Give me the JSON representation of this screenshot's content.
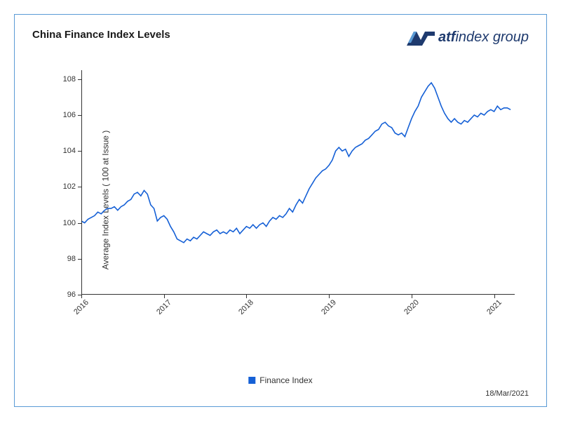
{
  "title": "China Finance Index Levels",
  "logo": {
    "brand": "atf",
    "suffix": "index group"
  },
  "legend": {
    "label": "Finance Index"
  },
  "date_stamp": "18/Mar/2021",
  "chart": {
    "type": "line",
    "y_axis_label": "Average Index Levels ( 100 at Issue )",
    "ylim": [
      96,
      108.5
    ],
    "yticks": [
      96,
      98,
      100,
      102,
      104,
      106,
      108
    ],
    "xlim": [
      2016,
      2021.25
    ],
    "xticks": [
      2016,
      2017,
      2018,
      2019,
      2020,
      2021
    ],
    "xtick_labels": [
      "2016",
      "2017",
      "2018",
      "2019",
      "2020",
      "2021"
    ],
    "line_color": "#1560d6",
    "line_width": 1.6,
    "background_color": "#ffffff",
    "axis_color": "#333333",
    "tick_fontsize": 11,
    "label_fontsize": 12,
    "series": [
      [
        2016.0,
        100.1
      ],
      [
        2016.04,
        100.0
      ],
      [
        2016.08,
        100.2
      ],
      [
        2016.12,
        100.3
      ],
      [
        2016.16,
        100.4
      ],
      [
        2016.2,
        100.6
      ],
      [
        2016.24,
        100.5
      ],
      [
        2016.28,
        100.7
      ],
      [
        2016.32,
        100.8
      ],
      [
        2016.36,
        100.8
      ],
      [
        2016.4,
        100.9
      ],
      [
        2016.44,
        100.7
      ],
      [
        2016.48,
        100.9
      ],
      [
        2016.52,
        101.0
      ],
      [
        2016.56,
        101.2
      ],
      [
        2016.6,
        101.3
      ],
      [
        2016.64,
        101.6
      ],
      [
        2016.68,
        101.7
      ],
      [
        2016.72,
        101.5
      ],
      [
        2016.76,
        101.8
      ],
      [
        2016.8,
        101.6
      ],
      [
        2016.84,
        101.0
      ],
      [
        2016.88,
        100.8
      ],
      [
        2016.92,
        100.1
      ],
      [
        2016.96,
        100.3
      ],
      [
        2017.0,
        100.4
      ],
      [
        2017.04,
        100.2
      ],
      [
        2017.08,
        99.8
      ],
      [
        2017.12,
        99.5
      ],
      [
        2017.16,
        99.1
      ],
      [
        2017.2,
        99.0
      ],
      [
        2017.24,
        98.9
      ],
      [
        2017.28,
        99.1
      ],
      [
        2017.32,
        99.0
      ],
      [
        2017.36,
        99.2
      ],
      [
        2017.4,
        99.1
      ],
      [
        2017.44,
        99.3
      ],
      [
        2017.48,
        99.5
      ],
      [
        2017.52,
        99.4
      ],
      [
        2017.56,
        99.3
      ],
      [
        2017.6,
        99.5
      ],
      [
        2017.64,
        99.6
      ],
      [
        2017.68,
        99.4
      ],
      [
        2017.72,
        99.5
      ],
      [
        2017.76,
        99.4
      ],
      [
        2017.8,
        99.6
      ],
      [
        2017.84,
        99.5
      ],
      [
        2017.88,
        99.7
      ],
      [
        2017.92,
        99.4
      ],
      [
        2017.96,
        99.6
      ],
      [
        2018.0,
        99.8
      ],
      [
        2018.04,
        99.7
      ],
      [
        2018.08,
        99.9
      ],
      [
        2018.12,
        99.7
      ],
      [
        2018.16,
        99.9
      ],
      [
        2018.2,
        100.0
      ],
      [
        2018.24,
        99.8
      ],
      [
        2018.28,
        100.1
      ],
      [
        2018.32,
        100.3
      ],
      [
        2018.36,
        100.2
      ],
      [
        2018.4,
        100.4
      ],
      [
        2018.44,
        100.3
      ],
      [
        2018.48,
        100.5
      ],
      [
        2018.52,
        100.8
      ],
      [
        2018.56,
        100.6
      ],
      [
        2018.6,
        101.0
      ],
      [
        2018.64,
        101.3
      ],
      [
        2018.68,
        101.1
      ],
      [
        2018.72,
        101.5
      ],
      [
        2018.76,
        101.9
      ],
      [
        2018.8,
        102.2
      ],
      [
        2018.84,
        102.5
      ],
      [
        2018.88,
        102.7
      ],
      [
        2018.92,
        102.9
      ],
      [
        2018.96,
        103.0
      ],
      [
        2019.0,
        103.2
      ],
      [
        2019.04,
        103.5
      ],
      [
        2019.08,
        104.0
      ],
      [
        2019.12,
        104.2
      ],
      [
        2019.16,
        104.0
      ],
      [
        2019.2,
        104.1
      ],
      [
        2019.24,
        103.7
      ],
      [
        2019.28,
        104.0
      ],
      [
        2019.32,
        104.2
      ],
      [
        2019.36,
        104.3
      ],
      [
        2019.4,
        104.4
      ],
      [
        2019.44,
        104.6
      ],
      [
        2019.48,
        104.7
      ],
      [
        2019.52,
        104.9
      ],
      [
        2019.56,
        105.1
      ],
      [
        2019.6,
        105.2
      ],
      [
        2019.64,
        105.5
      ],
      [
        2019.68,
        105.6
      ],
      [
        2019.72,
        105.4
      ],
      [
        2019.76,
        105.3
      ],
      [
        2019.8,
        105.0
      ],
      [
        2019.84,
        104.9
      ],
      [
        2019.88,
        105.0
      ],
      [
        2019.92,
        104.8
      ],
      [
        2019.96,
        105.3
      ],
      [
        2020.0,
        105.8
      ],
      [
        2020.04,
        106.2
      ],
      [
        2020.08,
        106.5
      ],
      [
        2020.12,
        107.0
      ],
      [
        2020.16,
        107.3
      ],
      [
        2020.2,
        107.6
      ],
      [
        2020.24,
        107.8
      ],
      [
        2020.28,
        107.5
      ],
      [
        2020.32,
        107.0
      ],
      [
        2020.36,
        106.5
      ],
      [
        2020.4,
        106.1
      ],
      [
        2020.44,
        105.8
      ],
      [
        2020.48,
        105.6
      ],
      [
        2020.52,
        105.8
      ],
      [
        2020.56,
        105.6
      ],
      [
        2020.6,
        105.5
      ],
      [
        2020.64,
        105.7
      ],
      [
        2020.68,
        105.6
      ],
      [
        2020.72,
        105.8
      ],
      [
        2020.76,
        106.0
      ],
      [
        2020.8,
        105.9
      ],
      [
        2020.84,
        106.1
      ],
      [
        2020.88,
        106.0
      ],
      [
        2020.92,
        106.2
      ],
      [
        2020.96,
        106.3
      ],
      [
        2021.0,
        106.2
      ],
      [
        2021.04,
        106.5
      ],
      [
        2021.08,
        106.3
      ],
      [
        2021.12,
        106.4
      ],
      [
        2021.16,
        106.4
      ],
      [
        2021.2,
        106.3
      ]
    ]
  }
}
